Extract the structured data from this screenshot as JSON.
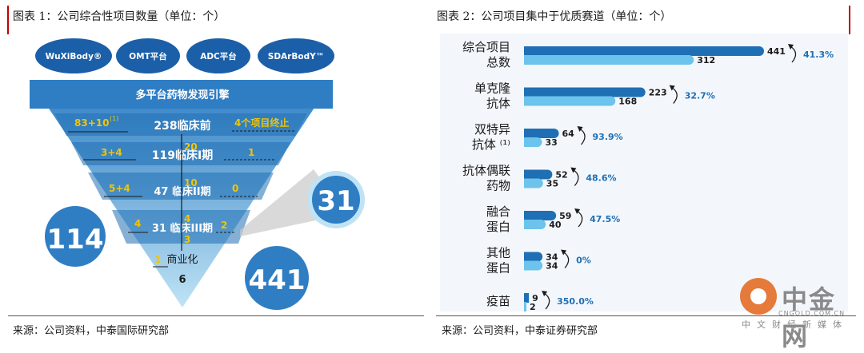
{
  "left": {
    "title": "图表 1：公司综合性项目数量（单位：个）",
    "source": "来源：公司资料，中泰国际研究部",
    "platforms": [
      "WuXiBody®",
      "OMT平台",
      "ADC平台",
      "SDArBodY™"
    ],
    "engine_label": "多平台药物发现引擎",
    "levels": [
      {
        "label": "238临床前",
        "left": "83+10",
        "left_sup": "(1)",
        "right": "4个项目终止",
        "mid": ""
      },
      {
        "label": "119临床I期",
        "left": "3+4",
        "left_sup": "",
        "right": "1",
        "mid": "20"
      },
      {
        "label": "47 临床II期",
        "left": "5+4",
        "left_sup": "",
        "right": "0",
        "mid": "10"
      },
      {
        "label": "31 临床III期",
        "left": "4",
        "left_sup": "",
        "right": "2",
        "mid": "4"
      },
      {
        "label": "商业化",
        "left": "1",
        "left_sup": "",
        "right": "",
        "mid": "3",
        "value": "6"
      }
    ],
    "circles": {
      "a": "114",
      "b": "441",
      "c": "31"
    }
  },
  "right": {
    "title": "图表 2：公司项目集中于优质赛道（单位：个）",
    "source": "来源：公司资料，中泰证券研究部"
  },
  "chart_data": {
    "type": "bar",
    "orientation": "horizontal",
    "title": "图表 2：公司项目集中于优质赛道（单位：个）",
    "categories": [
      [
        "综合项目",
        "总数"
      ],
      [
        "单克隆",
        "抗体"
      ],
      [
        "双特异",
        "抗体 ⁽¹⁾"
      ],
      [
        "抗体偶联",
        "药物"
      ],
      [
        "融合",
        "蛋白"
      ],
      [
        "其他",
        "蛋白"
      ],
      [
        "疫苗"
      ]
    ],
    "series": [
      {
        "values": [
          441,
          223,
          64,
          52,
          59,
          34,
          9
        ],
        "color": "#1f6fb5"
      },
      {
        "values": [
          312,
          168,
          33,
          35,
          40,
          34,
          2
        ],
        "color": "#6cc3ec"
      }
    ],
    "growth_labels": [
      "41.3%",
      "32.7%",
      "93.9%",
      "48.6%",
      "47.5%",
      "0%",
      "350.0%"
    ],
    "xlim": [
      0,
      441
    ]
  },
  "watermark": {
    "cn": "中金网",
    "url": "CNGOLD.COM.CN",
    "tagline": "中文财经新媒体"
  },
  "colors": {
    "dark_blue": "#1f6fb5",
    "light_blue": "#6cc3ec",
    "yellow": "#f2c500",
    "growth": "#1f6fb5",
    "red": "#c00000"
  }
}
